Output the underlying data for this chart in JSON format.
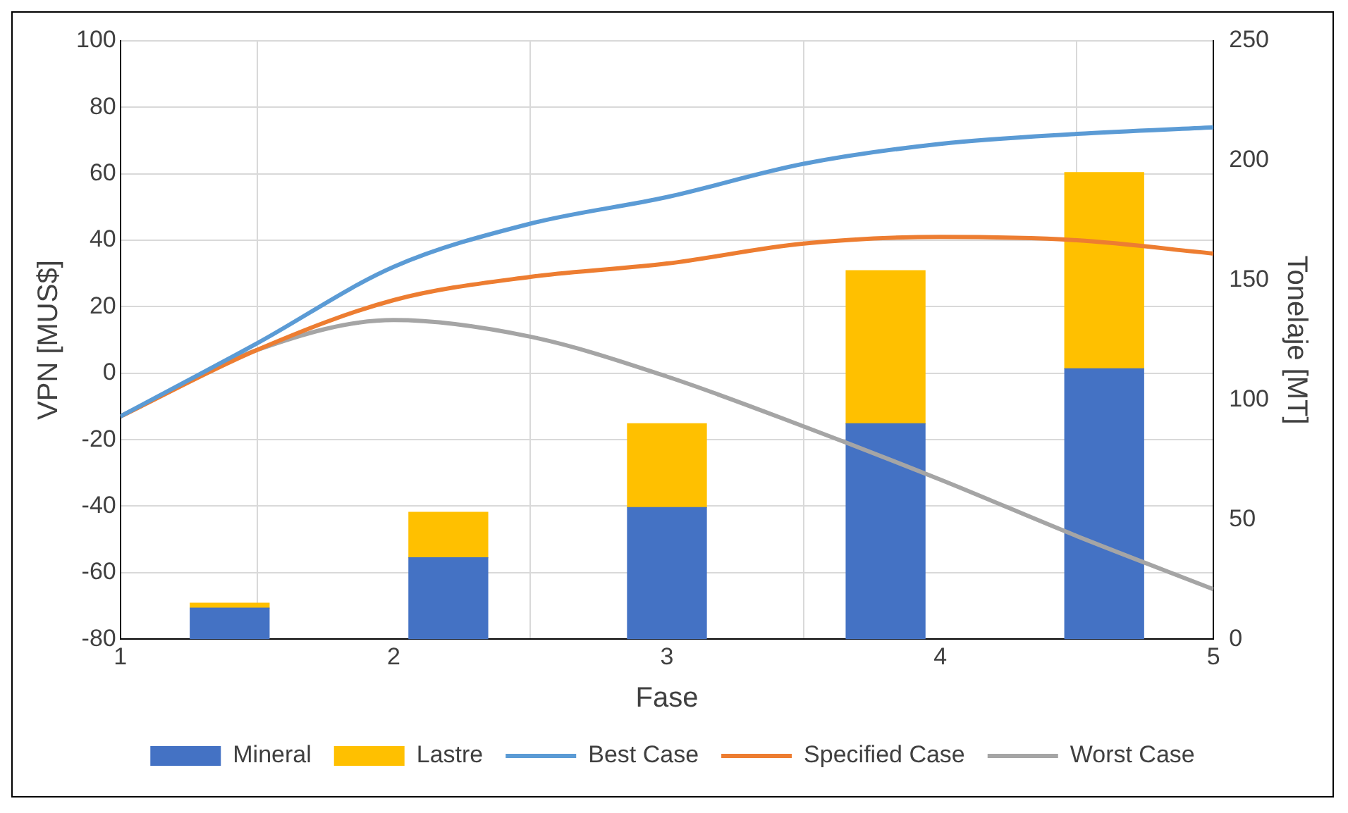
{
  "chart_data": {
    "type": "bar",
    "xlabel": "Fase",
    "ylabel": "VPN [MUS$]",
    "y2label": "Tonelaje [MT]",
    "stacked": true,
    "grid": true,
    "legend": "bottom",
    "marker": "none",
    "line_style": "solid",
    "xlim": [
      1,
      5
    ],
    "xticks": [
      1,
      2,
      3,
      4,
      5
    ],
    "ylim": [
      -80,
      100
    ],
    "yticks": [
      -80,
      -60,
      -40,
      -20,
      0,
      20,
      40,
      60,
      80,
      100
    ],
    "y2lim": [
      0,
      250
    ],
    "y2ticks": [
      0,
      50,
      100,
      150,
      200,
      250
    ],
    "series": [
      {
        "name": "Mineral",
        "axis": "y2",
        "color": "#4472c4",
        "x": [
          1.4,
          2.2,
          3.0,
          3.8,
          4.6
        ],
        "values": [
          13,
          34,
          55,
          90,
          113
        ]
      },
      {
        "name": "Lastre",
        "axis": "y2",
        "color": "#ffc000",
        "x": [
          1.4,
          2.2,
          3.0,
          3.8,
          4.6
        ],
        "values": [
          2,
          19,
          35,
          64,
          82
        ]
      },
      {
        "name": "Best Case",
        "type": "line",
        "color": "#5b9bd5",
        "x": [
          1,
          1.5,
          2,
          2.5,
          3,
          3.5,
          4,
          4.5,
          5
        ],
        "values": [
          -13,
          9,
          32,
          45,
          53,
          63,
          69,
          72,
          74
        ]
      },
      {
        "name": "Specified Case",
        "type": "line",
        "color": "#ed7d31",
        "x": [
          1,
          1.5,
          2,
          2.5,
          3,
          3.5,
          4,
          4.5,
          5
        ],
        "values": [
          -13,
          7,
          22,
          29,
          33,
          39,
          41,
          40,
          36
        ]
      },
      {
        "name": "Worst Case",
        "type": "line",
        "color": "#a5a5a5",
        "x": [
          1,
          1.5,
          2,
          2.5,
          3,
          3.5,
          4,
          4.5,
          5
        ],
        "values": [
          -13,
          7,
          16,
          11,
          -1,
          -16,
          -32,
          -49,
          -65
        ]
      }
    ]
  }
}
